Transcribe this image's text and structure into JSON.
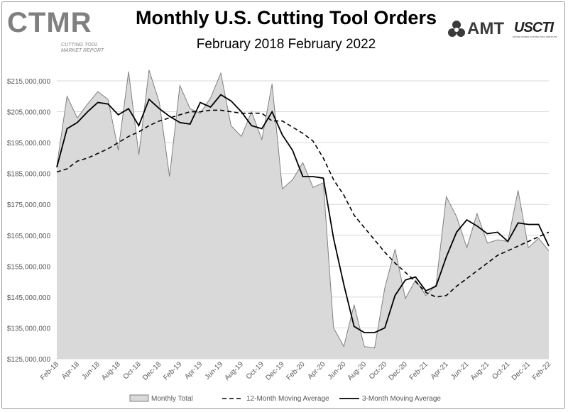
{
  "header": {
    "title": "Monthly U.S. Cutting Tool Orders",
    "subtitle": "February 2018 February 2022"
  },
  "logos": {
    "ctmr": {
      "word": "CTMR",
      "tagline": "CUTTING TOOL MARKET REPORT"
    },
    "amt": {
      "word": "AMT"
    },
    "uscti": {
      "word": "USCTI",
      "tagline": "UNITED STATES CUTTING TOOL INSTITUTE"
    }
  },
  "colors": {
    "area_fill": "#d9d9d9",
    "area_line": "#808080",
    "avg12": "#000000",
    "avg3": "#000000",
    "grid": "#d9d9d9"
  },
  "chart_data": {
    "type": "area",
    "title": "Monthly U.S. Cutting Tool Orders",
    "subtitle": "February 2018 February 2022",
    "ylim": [
      125000000,
      215000000
    ],
    "yticks": [
      125000000,
      135000000,
      145000000,
      155000000,
      165000000,
      175000000,
      185000000,
      195000000,
      205000000,
      215000000
    ],
    "ytick_labels": [
      "$125,000,000",
      "$135,000,000",
      "$145,000,000",
      "$155,000,000",
      "$165,000,000",
      "$175,000,000",
      "$185,000,000",
      "$195,000,000",
      "$205,000,000",
      "$215,000,000"
    ],
    "grid": true,
    "legend_position": "bottom",
    "x": [
      "Feb-18",
      "Mar-18",
      "Apr-18",
      "May-18",
      "Jun-18",
      "Jul-18",
      "Aug-18",
      "Sep-18",
      "Oct-18",
      "Nov-18",
      "Dec-18",
      "Jan-19",
      "Feb-19",
      "Mar-19",
      "Apr-19",
      "May-19",
      "Jun-19",
      "Jul-19",
      "Aug-19",
      "Sep-19",
      "Oct-19",
      "Nov-19",
      "Dec-19",
      "Jan-20",
      "Feb-20",
      "Mar-20",
      "Apr-20",
      "May-20",
      "Jun-20",
      "Jul-20",
      "Aug-20",
      "Sep-20",
      "Oct-20",
      "Nov-20",
      "Dec-20",
      "Jan-21",
      "Feb-21",
      "Mar-21",
      "Apr-21",
      "May-21",
      "Jun-21",
      "Jul-21",
      "Aug-21",
      "Sep-21",
      "Oct-21",
      "Nov-21",
      "Dec-21",
      "Jan-22",
      "Feb-22"
    ],
    "x_tick_labels": [
      "Feb-18",
      "Apr-18",
      "Jun-18",
      "Aug-18",
      "Oct-18",
      "Dec-18",
      "Feb-19",
      "Apr-19",
      "Jun-19",
      "Aug-19",
      "Oct-19",
      "Dec-19",
      "Feb-20",
      "Apr-20",
      "Jun-20",
      "Aug-20",
      "Oct-20",
      "Dec-20",
      "Feb-21",
      "Apr-21",
      "Jun-21",
      "Aug-21",
      "Oct-21",
      "Dec-21",
      "Feb-22"
    ],
    "series": [
      {
        "name": "Monthly Total",
        "style": "area",
        "values": [
          187500000,
          210000000,
          203000000,
          207500000,
          211500000,
          209000000,
          192500000,
          218000000,
          191000000,
          218500000,
          208000000,
          184000000,
          213500000,
          206000000,
          204500000,
          209500000,
          217500000,
          200500000,
          197000000,
          205000000,
          196000000,
          214000000,
          180000000,
          183000000,
          188500000,
          180500000,
          182000000,
          135000000,
          129000000,
          142500000,
          129000000,
          128500000,
          148000000,
          160500000,
          144500000,
          150500000,
          145500000,
          149000000,
          177500000,
          171000000,
          161000000,
          172000000,
          162500000,
          163500000,
          163000000,
          179500000,
          161000000,
          164000000,
          160000000
        ]
      },
      {
        "name": "12-Month Moving Average",
        "style": "dashed",
        "values": [
          185500000,
          186500000,
          189000000,
          190000000,
          191500000,
          193000000,
          195000000,
          197000000,
          198500000,
          200500000,
          202000000,
          203000000,
          204000000,
          205000000,
          205000000,
          205500000,
          205500000,
          205000000,
          204500000,
          204500000,
          204500000,
          202000000,
          202000000,
          200000000,
          198000000,
          195500000,
          190000000,
          183000000,
          178000000,
          171500000,
          167500000,
          163500000,
          159500000,
          156000000,
          153000000,
          150000000,
          146500000,
          145000000,
          145500000,
          148500000,
          151000000,
          153500000,
          156000000,
          158500000,
          160000000,
          161500000,
          163000000,
          164500000,
          166000000
        ]
      },
      {
        "name": "3-Month Moving Average",
        "style": "solid",
        "values": [
          187000000,
          199500000,
          201500000,
          205000000,
          208000000,
          207500000,
          204000000,
          206000000,
          200500000,
          209000000,
          206000000,
          203500000,
          201500000,
          201000000,
          208000000,
          206500000,
          210500000,
          208500000,
          205000000,
          200500000,
          199500000,
          205000000,
          197500000,
          192500000,
          184000000,
          184000000,
          183500000,
          164000000,
          149000000,
          135500000,
          133500000,
          133500000,
          135000000,
          145500000,
          150500000,
          151500000,
          147000000,
          148500000,
          158000000,
          166000000,
          170000000,
          168000000,
          165500000,
          166000000,
          163000000,
          169000000,
          168500000,
          168500000,
          161500000
        ]
      }
    ]
  },
  "legend": {
    "items": [
      {
        "label": "Monthly Total"
      },
      {
        "label": "12-Month Moving Average"
      },
      {
        "label": "3-Month Moving Average"
      }
    ]
  }
}
